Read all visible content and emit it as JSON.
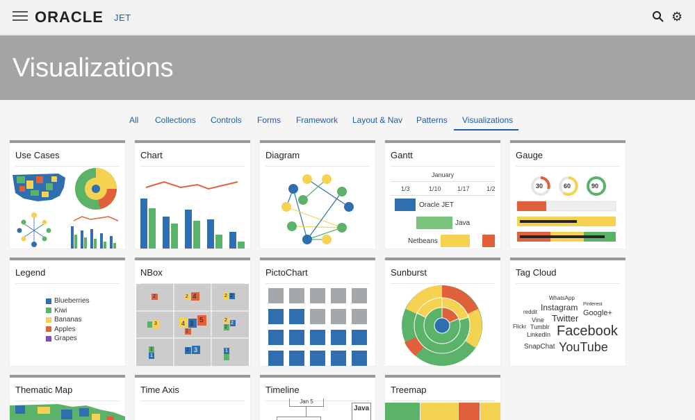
{
  "header": {
    "brand": "ORACLE",
    "product": "JET",
    "icons": [
      "hamburger-icon",
      "search-icon",
      "gear-icon"
    ]
  },
  "hero": {
    "title": "Visualizations"
  },
  "tabs": [
    {
      "label": "All"
    },
    {
      "label": "Collections"
    },
    {
      "label": "Controls"
    },
    {
      "label": "Forms"
    },
    {
      "label": "Framework"
    },
    {
      "label": "Layout & Nav"
    },
    {
      "label": "Patterns"
    },
    {
      "label": "Visualizations",
      "active": true
    }
  ],
  "cards": [
    {
      "title": "Use Cases"
    },
    {
      "title": "Chart"
    },
    {
      "title": "Diagram"
    },
    {
      "title": "Gantt"
    },
    {
      "title": "Gauge"
    },
    {
      "title": "Legend"
    },
    {
      "title": "NBox"
    },
    {
      "title": "PictoChart"
    },
    {
      "title": "Sunburst"
    },
    {
      "title": "Tag Cloud"
    },
    {
      "title": "Thematic Map"
    },
    {
      "title": "Time Axis"
    },
    {
      "title": "Timeline"
    },
    {
      "title": "Treemap"
    }
  ],
  "gantt": {
    "month": "January",
    "weeks": [
      "1/3",
      "1/10",
      "1/17",
      "1/2"
    ],
    "tasks": [
      "Oracle JET",
      "Java",
      "Netbeans"
    ]
  },
  "gauge": {
    "values": [
      "30",
      "60",
      "90"
    ]
  },
  "legend": {
    "items": [
      {
        "label": "Blueberries",
        "color": "#2f6fb0"
      },
      {
        "label": "Kiwi",
        "color": "#5bb36a"
      },
      {
        "label": "Bananas",
        "color": "#f5d252"
      },
      {
        "label": "Apples",
        "color": "#e0603a"
      },
      {
        "label": "Grapes",
        "color": "#7d4fb0"
      }
    ]
  },
  "nbox": {
    "counts": [
      "2",
      "2",
      "4",
      "2",
      "2",
      "3",
      "4",
      "3",
      "5",
      "2",
      "2",
      "1",
      "2",
      "3",
      "1",
      "2",
      "1",
      "1"
    ]
  },
  "tagcloud": {
    "tags": [
      "WhatsApp",
      "Pinterest",
      "Instagram",
      "reddit",
      "Google+",
      "Vine",
      "Twitter",
      "Flickr",
      "Tumblr",
      "LinkedIn",
      "Facebook",
      "SnapChat",
      "YouTube"
    ]
  },
  "timeline": {
    "labels": [
      "Jan 5",
      "Java"
    ]
  },
  "colors": {
    "blue": "#2f6fb0",
    "green": "#5bb36a",
    "yellow": "#f5d252",
    "red": "#e0603a",
    "accent": "#1d5ba8",
    "hero": "#a4a4a4"
  }
}
